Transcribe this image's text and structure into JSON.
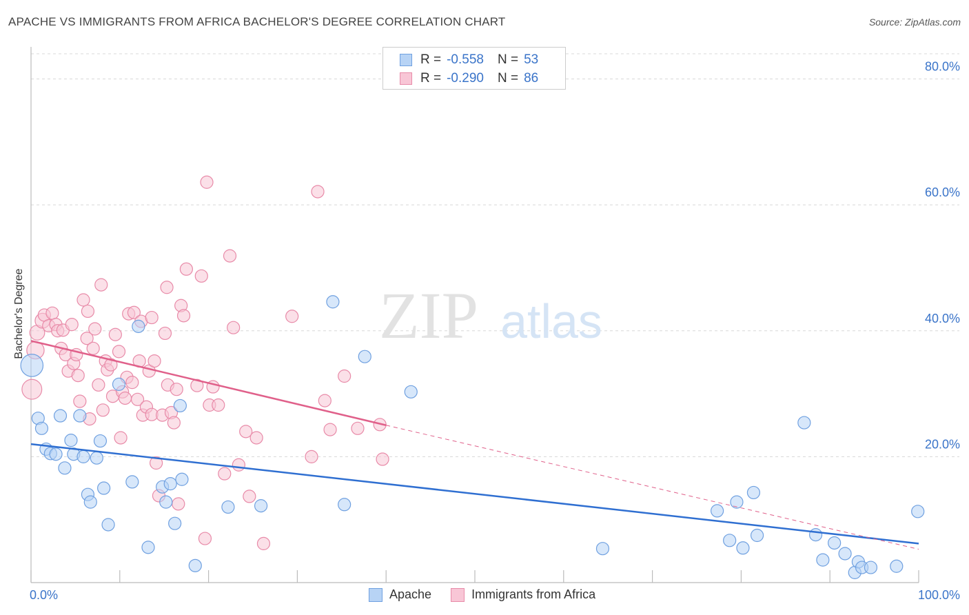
{
  "title": "APACHE VS IMMIGRANTS FROM AFRICA BACHELOR'S DEGREE CORRELATION CHART",
  "source": "Source: ZipAtlas.com",
  "watermark": {
    "zip": "ZIP",
    "atlas": "atlas"
  },
  "legend_top": [
    {
      "r_label": "R =",
      "r_value": "-0.558",
      "n_label": "N =",
      "n_value": "53"
    },
    {
      "r_label": "R =",
      "r_value": "-0.290",
      "n_label": "N =",
      "n_value": "86"
    }
  ],
  "colors": {
    "apache_fill": "#b7d3f5",
    "apache_stroke": "#6fa0e0",
    "apache_line": "#2f6fd1",
    "africa_fill": "#f8c6d6",
    "africa_stroke": "#e88aa8",
    "africa_line": "#e0608a",
    "tick_label": "#3a74c9",
    "grid": "#d8d8d8"
  },
  "chart_data": {
    "type": "scatter",
    "title": "APACHE VS IMMIGRANTS FROM AFRICA BACHELOR'S DEGREE CORRELATION CHART",
    "xlabel": "",
    "ylabel": "Bachelor's Degree",
    "xlim": [
      0,
      100
    ],
    "ylim": [
      0,
      84
    ],
    "x_tick_labels": [
      "0.0%",
      "100.0%"
    ],
    "y_ticks": [
      20,
      40,
      60,
      80
    ],
    "y_tick_labels": [
      "20.0%",
      "40.0%",
      "60.0%",
      "80.0%"
    ],
    "grid": true,
    "legend_position": "bottom",
    "series": [
      {
        "name": "Apache",
        "r": -0.558,
        "n": 53,
        "trend": {
          "x0": 0,
          "y0": 22.0,
          "x1": 100,
          "y1": 6.2
        },
        "points": [
          [
            0.1,
            34.5,
            1.8
          ],
          [
            0.8,
            26.1,
            1
          ],
          [
            1.2,
            24.5,
            1
          ],
          [
            1.7,
            21.2,
            1
          ],
          [
            2.2,
            20.5,
            1
          ],
          [
            2.8,
            20.4,
            1
          ],
          [
            3.3,
            26.5,
            1
          ],
          [
            3.8,
            18.2,
            1
          ],
          [
            4.5,
            22.6,
            1
          ],
          [
            4.8,
            20.4,
            1
          ],
          [
            5.5,
            26.5,
            1
          ],
          [
            5.9,
            20.0,
            1
          ],
          [
            6.4,
            14.0,
            1
          ],
          [
            6.7,
            12.8,
            1
          ],
          [
            7.4,
            19.8,
            1
          ],
          [
            7.8,
            22.5,
            1
          ],
          [
            8.2,
            15.0,
            1
          ],
          [
            8.7,
            9.2,
            1
          ],
          [
            9.9,
            31.5,
            1
          ],
          [
            11.4,
            16.0,
            1
          ],
          [
            12.1,
            40.7,
            1
          ],
          [
            13.2,
            5.6,
            1
          ],
          [
            14.8,
            15.2,
            1
          ],
          [
            15.2,
            12.8,
            1
          ],
          [
            15.7,
            15.7,
            1
          ],
          [
            16.2,
            9.4,
            1
          ],
          [
            16.8,
            28.1,
            1
          ],
          [
            17.0,
            16.4,
            1
          ],
          [
            18.5,
            2.7,
            1
          ],
          [
            22.2,
            12.0,
            1
          ],
          [
            25.9,
            12.2,
            1
          ],
          [
            34.0,
            44.6,
            1
          ],
          [
            35.3,
            12.4,
            1
          ],
          [
            37.6,
            35.9,
            1
          ],
          [
            42.8,
            30.3,
            1
          ],
          [
            64.4,
            5.4,
            1
          ],
          [
            77.3,
            11.4,
            1
          ],
          [
            78.7,
            6.7,
            1
          ],
          [
            79.5,
            12.8,
            1
          ],
          [
            80.2,
            5.5,
            1
          ],
          [
            81.4,
            14.3,
            1
          ],
          [
            81.8,
            7.5,
            1
          ],
          [
            87.1,
            25.4,
            1
          ],
          [
            88.4,
            7.6,
            1
          ],
          [
            89.2,
            3.6,
            1
          ],
          [
            90.5,
            6.3,
            1
          ],
          [
            91.7,
            4.6,
            1
          ],
          [
            92.8,
            1.6,
            1
          ],
          [
            93.2,
            3.3,
            1
          ],
          [
            93.6,
            2.4,
            1
          ],
          [
            94.6,
            2.4,
            1
          ],
          [
            97.5,
            2.6,
            1
          ],
          [
            99.9,
            11.3,
            1
          ]
        ]
      },
      {
        "name": "Immigrants from Africa",
        "r": -0.29,
        "n": 86,
        "trend": {
          "x0": 0,
          "y0": 38.4,
          "x1": 40,
          "y1": 25.0,
          "dash_x1": 100,
          "dash_y1": 5.3
        },
        "points": [
          [
            0.1,
            30.7,
            1.6
          ],
          [
            0.5,
            36.9,
            1.4
          ],
          [
            0.7,
            39.7,
            1.2
          ],
          [
            1.3,
            41.6,
            1.2
          ],
          [
            1.5,
            42.5,
            1
          ],
          [
            2.0,
            40.8,
            1
          ],
          [
            2.4,
            42.8,
            1
          ],
          [
            2.8,
            41.0,
            1
          ],
          [
            3.0,
            40.0,
            1
          ],
          [
            3.6,
            40.1,
            1
          ],
          [
            3.4,
            37.2,
            1
          ],
          [
            3.9,
            36.2,
            1
          ],
          [
            4.2,
            33.6,
            1
          ],
          [
            4.8,
            34.8,
            1
          ],
          [
            4.6,
            41.0,
            1
          ],
          [
            5.1,
            36.2,
            1
          ],
          [
            5.3,
            32.9,
            1
          ],
          [
            5.5,
            28.8,
            1
          ],
          [
            5.9,
            44.9,
            1
          ],
          [
            6.3,
            38.8,
            1
          ],
          [
            6.4,
            43.1,
            1
          ],
          [
            6.6,
            26.0,
            1
          ],
          [
            7.0,
            37.2,
            1
          ],
          [
            7.2,
            40.3,
            1
          ],
          [
            7.6,
            31.4,
            1
          ],
          [
            7.9,
            47.3,
            1
          ],
          [
            8.1,
            27.4,
            1
          ],
          [
            8.4,
            35.2,
            1
          ],
          [
            8.6,
            33.8,
            1
          ],
          [
            9.0,
            34.6,
            1
          ],
          [
            9.2,
            29.6,
            1
          ],
          [
            9.5,
            39.4,
            1
          ],
          [
            9.9,
            36.7,
            1
          ],
          [
            10.1,
            23.0,
            1
          ],
          [
            10.3,
            30.3,
            1
          ],
          [
            10.6,
            29.3,
            1
          ],
          [
            10.8,
            32.6,
            1
          ],
          [
            11.0,
            42.7,
            1
          ],
          [
            11.4,
            31.8,
            1
          ],
          [
            11.6,
            42.9,
            1
          ],
          [
            12.0,
            29.1,
            1
          ],
          [
            12.2,
            35.2,
            1
          ],
          [
            12.4,
            41.5,
            1
          ],
          [
            12.6,
            26.6,
            1
          ],
          [
            13.0,
            27.9,
            1
          ],
          [
            13.3,
            33.6,
            1
          ],
          [
            13.6,
            26.7,
            1
          ],
          [
            13.9,
            35.2,
            1
          ],
          [
            14.1,
            19.0,
            1
          ],
          [
            14.4,
            13.8,
            1
          ],
          [
            14.8,
            26.6,
            1
          ],
          [
            15.1,
            39.6,
            1
          ],
          [
            15.3,
            46.9,
            1
          ],
          [
            15.4,
            31.4,
            1
          ],
          [
            15.8,
            27.0,
            1
          ],
          [
            16.1,
            25.4,
            1
          ],
          [
            16.4,
            30.7,
            1
          ],
          [
            16.6,
            12.5,
            1
          ],
          [
            16.9,
            44.0,
            1
          ],
          [
            17.2,
            42.4,
            1
          ],
          [
            17.5,
            49.8,
            1
          ],
          [
            18.7,
            31.3,
            1
          ],
          [
            19.2,
            48.7,
            1
          ],
          [
            19.6,
            7.0,
            1
          ],
          [
            19.8,
            63.6,
            1
          ],
          [
            20.1,
            28.2,
            1
          ],
          [
            20.5,
            31.1,
            1
          ],
          [
            21.1,
            28.2,
            1
          ],
          [
            21.8,
            17.3,
            1
          ],
          [
            22.4,
            51.9,
            1
          ],
          [
            22.8,
            40.5,
            1
          ],
          [
            23.4,
            18.7,
            1
          ],
          [
            24.2,
            24.0,
            1
          ],
          [
            24.6,
            13.7,
            1
          ],
          [
            25.4,
            23.0,
            1
          ],
          [
            26.2,
            6.2,
            1
          ],
          [
            29.4,
            42.3,
            1
          ],
          [
            31.6,
            20.0,
            1
          ],
          [
            32.3,
            62.1,
            1
          ],
          [
            33.1,
            28.9,
            1
          ],
          [
            33.7,
            24.3,
            1
          ],
          [
            35.3,
            32.8,
            1
          ],
          [
            36.8,
            24.5,
            1
          ],
          [
            39.6,
            19.6,
            1
          ],
          [
            39.3,
            25.1,
            1
          ],
          [
            13.6,
            42.1,
            1
          ]
        ]
      }
    ]
  },
  "bottom_legend": [
    {
      "label": "Apache"
    },
    {
      "label": "Immigrants from Africa"
    }
  ]
}
